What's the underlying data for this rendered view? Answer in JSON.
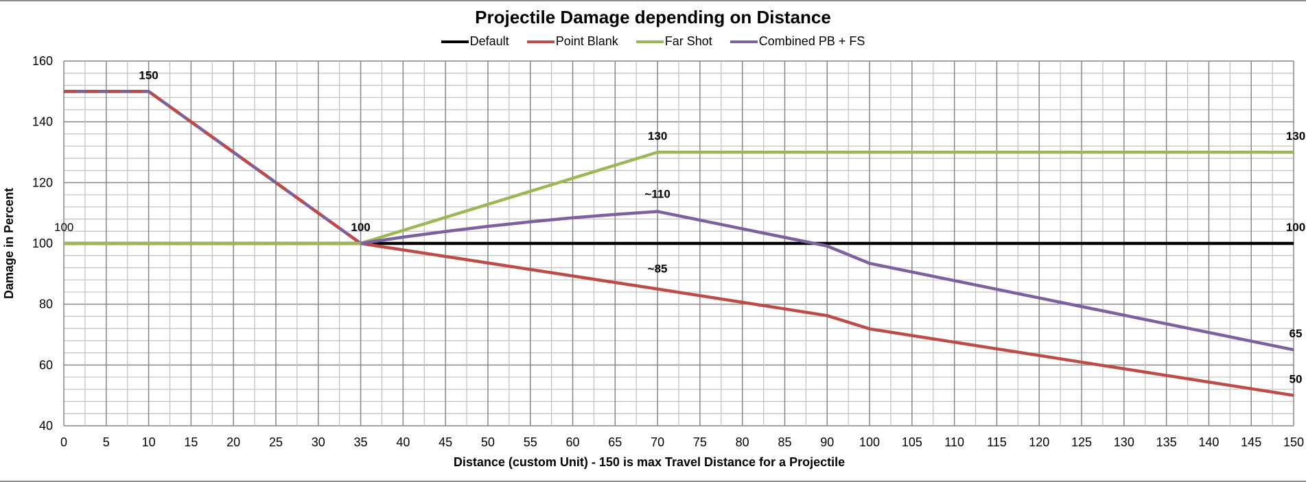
{
  "chart_data": {
    "type": "line",
    "title": "Projectile Damage depending on Distance",
    "xlabel": "Distance (custom Unit) - 150 is max Travel Distance for a Projectile",
    "ylabel": "Damage in Percent",
    "x_axis_type": "category",
    "categories": [
      "0",
      "5",
      "10",
      "15",
      "20",
      "25",
      "30",
      "35",
      "40",
      "45",
      "50",
      "55",
      "60",
      "65",
      "70",
      "75",
      "80",
      "85",
      "90",
      "100",
      "105",
      "110",
      "115",
      "120",
      "125",
      "130",
      "135",
      "140",
      "145",
      "150"
    ],
    "ylim": [
      40,
      160
    ],
    "yticks": [
      40,
      60,
      80,
      100,
      120,
      140,
      160
    ],
    "y_minor_step": 4,
    "grid": "major and minor",
    "legend_position": "top",
    "series": [
      {
        "name": "Default",
        "color": "#000000",
        "values": [
          100,
          100,
          100,
          100,
          100,
          100,
          100,
          100,
          100,
          100,
          100,
          100,
          100,
          100,
          100,
          100,
          100,
          100,
          100,
          100,
          100,
          100,
          100,
          100,
          100,
          100,
          100,
          100,
          100,
          100
        ]
      },
      {
        "name": "Point Blank",
        "color": "#BE4B48",
        "values": [
          150,
          150,
          150,
          140,
          130,
          120,
          110,
          100,
          97.86,
          95.71,
          93.57,
          91.43,
          89.29,
          87.14,
          85,
          82.81,
          80.63,
          78.44,
          76.25,
          71.88,
          69.69,
          67.5,
          65.31,
          63.13,
          60.94,
          58.75,
          56.56,
          54.38,
          52.19,
          50
        ]
      },
      {
        "name": "Far Shot",
        "color": "#98B954",
        "values": [
          100,
          100,
          100,
          100,
          100,
          100,
          100,
          100,
          104.29,
          108.57,
          112.86,
          117.14,
          121.43,
          125.71,
          130,
          130,
          130,
          130,
          130,
          130,
          130,
          130,
          130,
          130,
          130,
          130,
          130,
          130,
          130,
          130
        ]
      },
      {
        "name": "Combined PB + FS",
        "color": "#7D60A0",
        "values": [
          150,
          150,
          150,
          140,
          130,
          120,
          110,
          100,
          102.06,
          103.91,
          105.61,
          107.1,
          108.43,
          109.54,
          110.5,
          107.66,
          104.81,
          101.97,
          99.13,
          93.44,
          90.59,
          87.75,
          84.91,
          82.06,
          79.22,
          76.38,
          73.53,
          70.69,
          67.84,
          65
        ]
      }
    ],
    "annotations": [
      {
        "text": "100",
        "category": "0",
        "value": 100,
        "bold": false
      },
      {
        "text": "150",
        "category": "10",
        "value": 150,
        "bold": true
      },
      {
        "text": "100",
        "category": "35",
        "value": 100,
        "bold": true
      },
      {
        "text": "130",
        "category": "70",
        "value": 130,
        "bold": true
      },
      {
        "text": "~110",
        "category": "70",
        "value": 110.5,
        "bold": true
      },
      {
        "text": "~85",
        "category": "70",
        "value": 85,
        "bold": true,
        "position": "above-offset"
      },
      {
        "text": "130",
        "category": "150",
        "value": 130,
        "bold": true
      },
      {
        "text": "100",
        "category": "150",
        "value": 100,
        "bold": true
      },
      {
        "text": "65",
        "category": "150",
        "value": 65,
        "bold": true
      },
      {
        "text": "50",
        "category": "150",
        "value": 50,
        "bold": true
      }
    ]
  }
}
